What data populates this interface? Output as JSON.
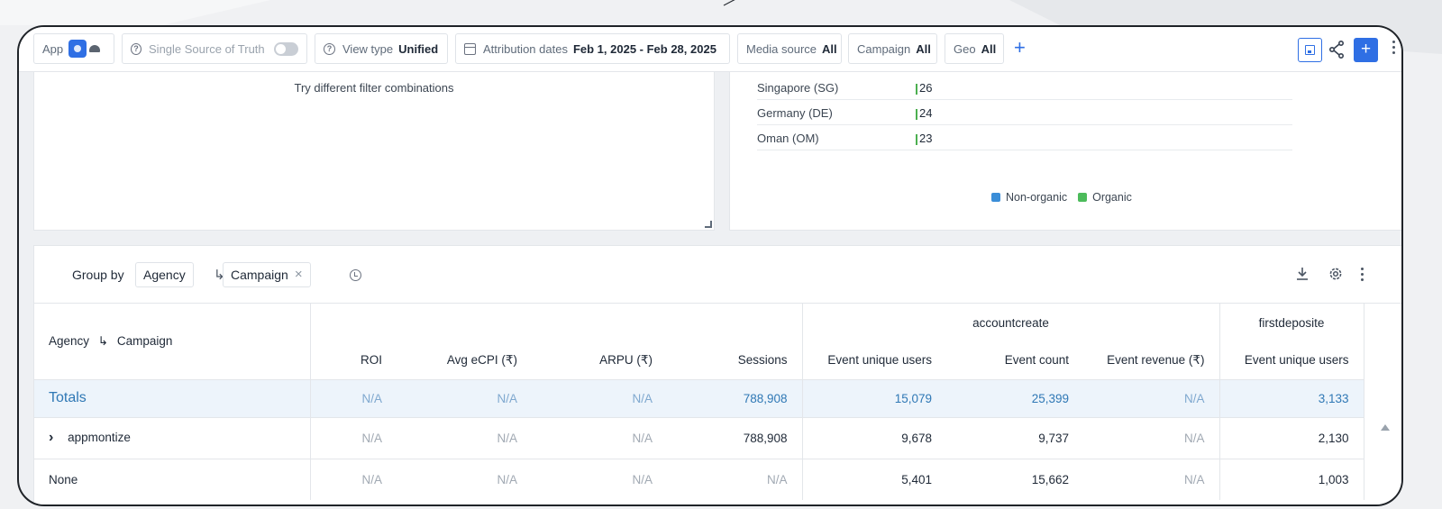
{
  "filterbar": {
    "app_label": "App",
    "ssot_label": "Single Source of Truth",
    "view_type_label": "View type",
    "view_type_value": "Unified",
    "attribution_label": "Attribution dates",
    "attribution_value": "Feb 1, 2025 - Feb 28, 2025",
    "media_source_label": "Media source",
    "media_source_value": "All",
    "campaign_label": "Campaign",
    "campaign_value": "All",
    "geo_label": "Geo",
    "geo_value": "All",
    "add_filter": "+",
    "add_button": "+"
  },
  "left_panel": {
    "message": "Try different filter combinations"
  },
  "geo_panel": {
    "rows": [
      {
        "name": "Singapore (SG)",
        "value": "26"
      },
      {
        "name": "Germany (DE)",
        "value": "24"
      },
      {
        "name": "Oman (OM)",
        "value": "23"
      }
    ],
    "legend": {
      "non_organic": "Non-organic",
      "organic": "Organic",
      "non_organic_color": "#3b8ed8",
      "organic_color": "#4cbb5b"
    }
  },
  "groupby": {
    "label": "Group by",
    "chip1": "Agency",
    "arrow": "↳",
    "chip2": "Campaign",
    "remove": "×"
  },
  "table": {
    "first_col_header": "Agency",
    "first_col_arrow": "↳",
    "first_col_header2": "Campaign",
    "group_accountcreate": "accountcreate",
    "group_firstdeposite": "firstdeposite",
    "columns": {
      "roi": "ROI",
      "ecpi": "Avg eCPI (₹)",
      "arpu": "ARPU (₹)",
      "sessions": "Sessions",
      "ac_users": "Event unique users",
      "ac_count": "Event count",
      "ac_revenue": "Event revenue (₹)",
      "fd_users": "Event unique users"
    },
    "totals": {
      "label": "Totals",
      "roi": "N/A",
      "ecpi": "N/A",
      "arpu": "N/A",
      "sessions": "788,908",
      "ac_users": "15,079",
      "ac_count": "25,399",
      "ac_revenue": "N/A",
      "fd_users": "3,133"
    },
    "rows": [
      {
        "expander": "›",
        "label": "appmontize",
        "roi": "N/A",
        "ecpi": "N/A",
        "arpu": "N/A",
        "sessions": "788,908",
        "ac_users": "9,678",
        "ac_count": "9,737",
        "ac_revenue": "N/A",
        "fd_users": "2,130"
      },
      {
        "label": "None",
        "roi": "N/A",
        "ecpi": "N/A",
        "arpu": "N/A",
        "sessions": "N/A",
        "ac_users": "5,401",
        "ac_count": "15,662",
        "ac_revenue": "N/A",
        "fd_users": "1,003"
      }
    ]
  }
}
